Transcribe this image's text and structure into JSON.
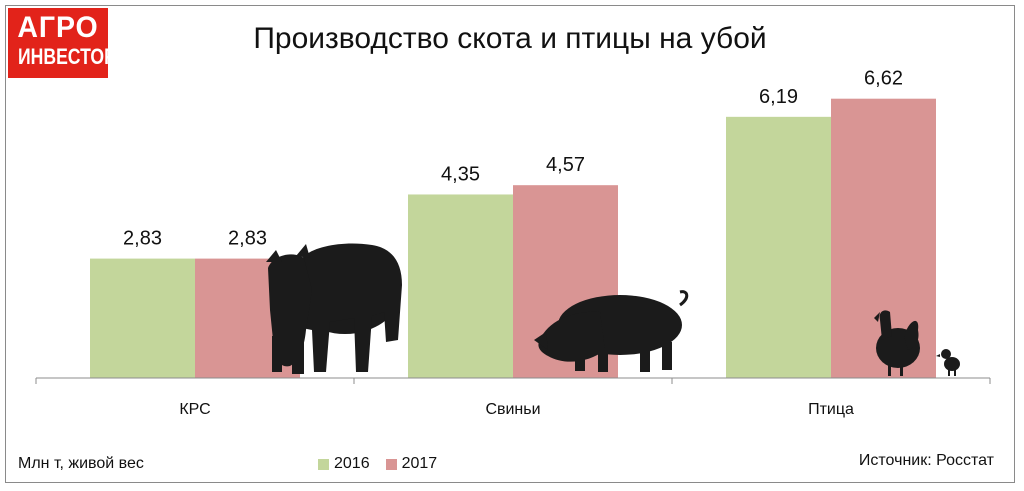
{
  "logo": {
    "line1": "АГРО",
    "line2": "ИНВЕСТОР"
  },
  "chart_data": {
    "type": "bar",
    "title": "Производство скота и птицы на убой",
    "categories": [
      "КРС",
      "Свиньи",
      "Птица"
    ],
    "series": [
      {
        "name": "2016",
        "values": [
          2.83,
          4.35,
          6.19
        ],
        "labels": [
          "2,83",
          "4,35",
          "6,19"
        ],
        "color": "#c3d69b"
      },
      {
        "name": "2017",
        "values": [
          2.83,
          4.57,
          6.62
        ],
        "labels": [
          "2,83",
          "4,57",
          "6,62"
        ],
        "color": "#d99594"
      }
    ],
    "ylim": [
      0,
      7.3
    ],
    "grid": false,
    "legend_position": "bottom",
    "ylabel": "Млн т, живой вес",
    "source": "Источник: Росстат",
    "illustrations": [
      "cow-silhouette-icon",
      "pig-silhouette-icon",
      "rooster-silhouette-icon",
      "chick-silhouette-icon"
    ]
  }
}
